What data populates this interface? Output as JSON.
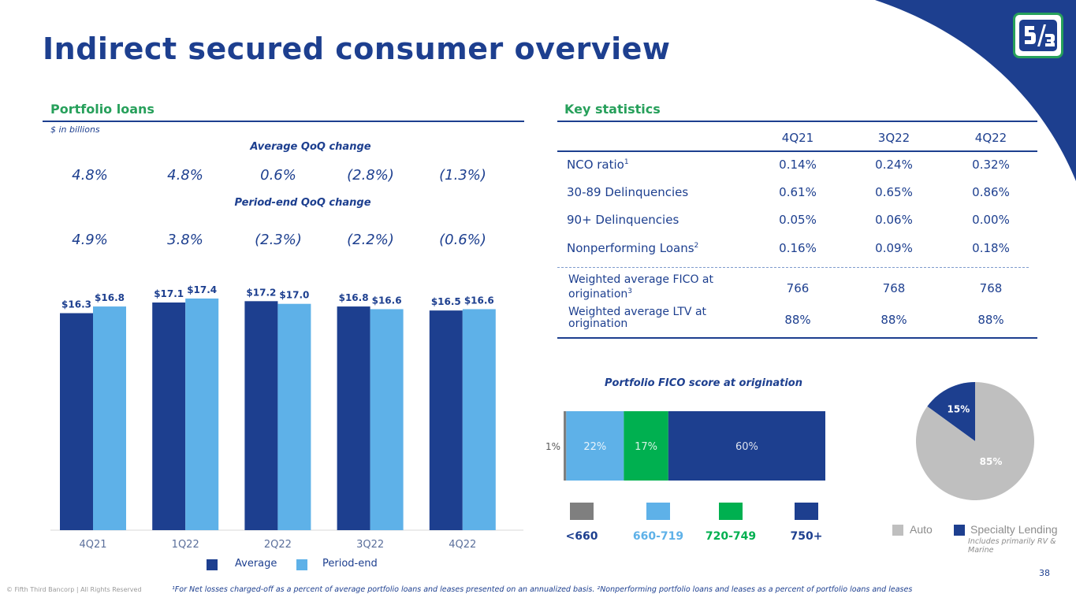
{
  "page": {
    "title": "Indirect secured consumer overview",
    "page_number": "38",
    "copyright": "© Fifth Third Bancorp | All Rights Reserved",
    "footnote": "¹For Net losses charged-off as a percent of average portfolio loans and leases presented on an annualized basis. ²Nonperforming portfolio loans and leases as a percent of portfolio loans and leases"
  },
  "colors": {
    "navy": "#1d3f8f",
    "light_blue": "#5eb1e8",
    "green": "#00b050",
    "gray": "#7f7f7f",
    "pie_gray": "#bfbfbf",
    "accent_green": "#27a05b"
  },
  "portfolio": {
    "heading": "Portfolio loans",
    "units": "$ in billions",
    "avg_qoq_heading": "Average QoQ change",
    "avg_qoq": [
      "4.8%",
      "4.8%",
      "0.6%",
      "(2.8%)",
      "(1.3%)"
    ],
    "pe_qoq_heading": "Period-end QoQ change",
    "pe_qoq": [
      "4.9%",
      "3.8%",
      "(2.3%)",
      "(2.2%)",
      "(0.6%)"
    ]
  },
  "key_stats": {
    "heading": "Key statistics",
    "columns": [
      "4Q21",
      "3Q22",
      "4Q22"
    ],
    "rows": [
      {
        "label": "NCO ratio",
        "sup": "1",
        "values": [
          "0.14%",
          "0.24%",
          "0.32%"
        ]
      },
      {
        "label": "30-89 Delinquencies",
        "sup": "",
        "values": [
          "0.61%",
          "0.65%",
          "0.86%"
        ]
      },
      {
        "label": "90+ Delinquencies",
        "sup": "",
        "values": [
          "0.05%",
          "0.06%",
          "0.00%"
        ]
      },
      {
        "label": "Nonperforming Loans",
        "sup": "2",
        "values": [
          "0.16%",
          "0.09%",
          "0.18%"
        ]
      }
    ],
    "rows2": [
      {
        "label": "Weighted average FICO at origination",
        "sup": "3",
        "values": [
          "766",
          "768",
          "768"
        ]
      },
      {
        "label": "Weighted average LTV at origination",
        "sup": "",
        "values": [
          "88%",
          "88%",
          "88%"
        ]
      }
    ]
  },
  "chart_data": [
    {
      "type": "bar",
      "categories": [
        "4Q21",
        "1Q22",
        "2Q22",
        "3Q22",
        "4Q22"
      ],
      "series": [
        {
          "name": "Average",
          "values": [
            16.3,
            17.1,
            17.2,
            16.8,
            16.5
          ],
          "labels": [
            "$16.3",
            "$17.1",
            "$17.2",
            "$16.8",
            "$16.5"
          ],
          "color": "#1d3f8f"
        },
        {
          "name": "Period-end",
          "values": [
            16.8,
            17.4,
            17.0,
            16.6,
            16.6
          ],
          "labels": [
            "$16.8",
            "$17.4",
            "$17.0",
            "$16.6",
            "$16.6"
          ],
          "color": "#5eb1e8"
        }
      ],
      "legend_position": "bottom"
    },
    {
      "type": "bar",
      "orientation": "horizontal-stacked",
      "title": "Portfolio FICO score at origination",
      "segments": [
        {
          "name": "<660",
          "value": 1,
          "label": "1%",
          "color": "#7f7f7f"
        },
        {
          "name": "660-719",
          "value": 22,
          "label": "22%",
          "color": "#5eb1e8"
        },
        {
          "name": "720-749",
          "value": 17,
          "label": "17%",
          "color": "#00b050"
        },
        {
          "name": "750+",
          "value": 60,
          "label": "60%",
          "color": "#1d3f8f"
        }
      ],
      "legend_position": "bottom"
    },
    {
      "type": "pie",
      "slices": [
        {
          "name": "Auto",
          "value": 85,
          "label": "85%",
          "color": "#bfbfbf"
        },
        {
          "name": "Specialty Lending",
          "value": 15,
          "label": "15%",
          "color": "#1d3f8f"
        }
      ],
      "note": "Includes primarily RV & Marine",
      "legend_position": "bottom"
    }
  ]
}
